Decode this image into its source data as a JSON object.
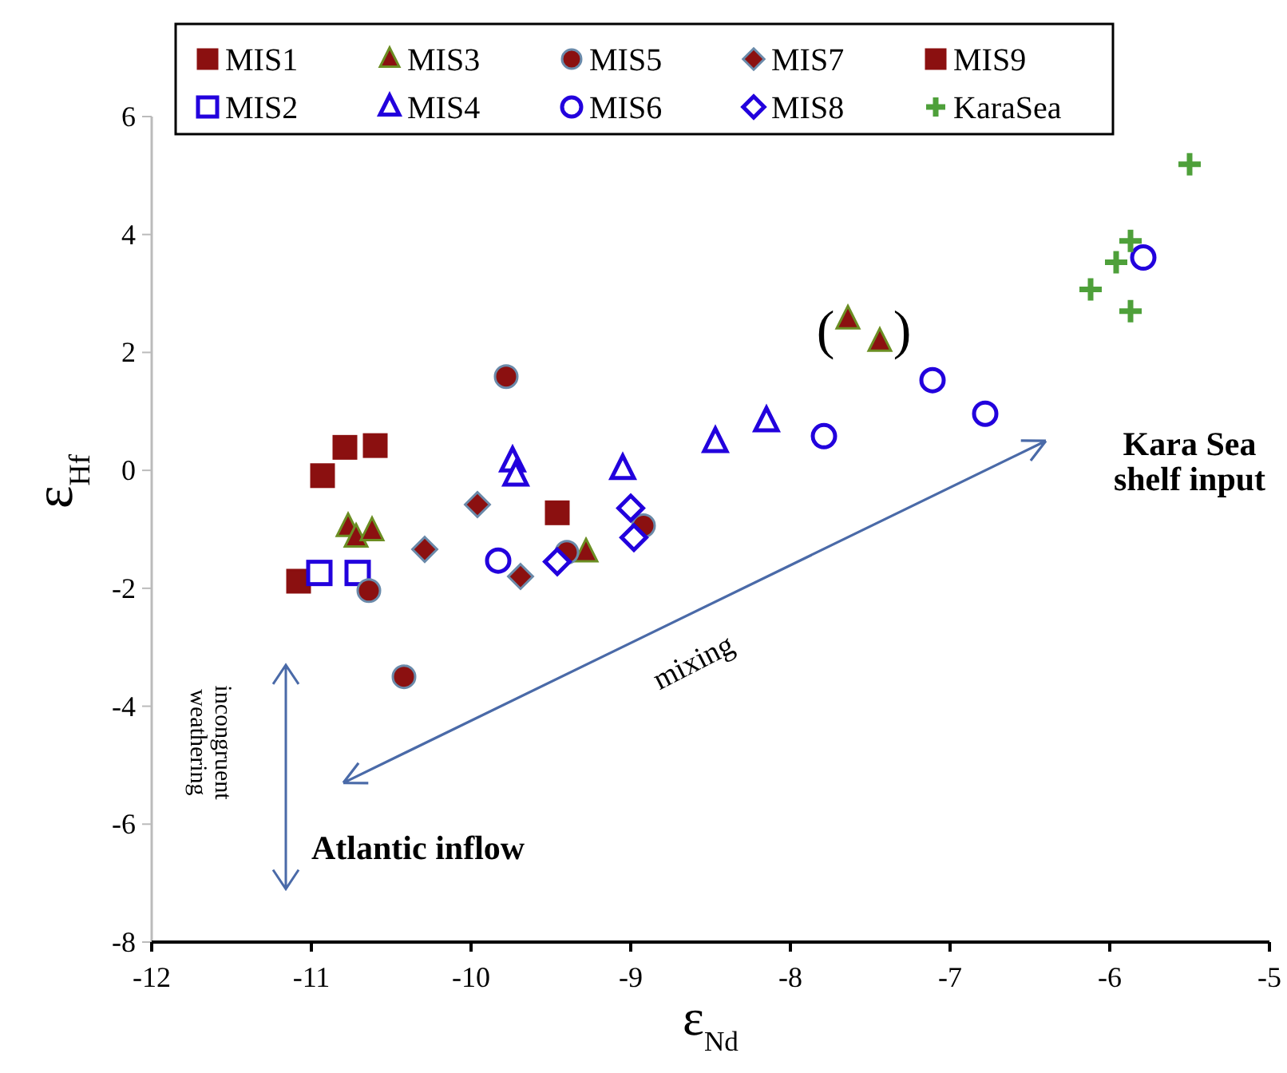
{
  "chart_data": {
    "type": "scatter",
    "xlabel": "ε$_{Nd}$",
    "ylabel": "ε$_{Hf}$",
    "xlim": [
      -12,
      -5
    ],
    "ylim": [
      -8,
      6
    ],
    "xticks": [
      -12,
      -11,
      -10,
      -9,
      -8,
      -7,
      -6,
      -5
    ],
    "yticks": [
      -8,
      -6,
      -4,
      -2,
      0,
      2,
      4,
      6
    ],
    "grid": false,
    "legend": "top",
    "series": [
      {
        "name": "MIS1",
        "color": "#8b1010",
        "marker": "square",
        "x": [
          -11.08,
          -10.93,
          -10.79,
          -10.6
        ],
        "values": [
          -1.88,
          -0.09,
          0.39,
          0.42
        ]
      },
      {
        "name": "MIS2",
        "color": "#2200dd",
        "marker": "square",
        "x": [
          -10.95,
          -10.71
        ],
        "values": [
          -1.74,
          -1.74
        ]
      },
      {
        "name": "MIS3",
        "color": "#8b1010",
        "marker": "triangle",
        "x": [
          -10.77,
          -10.72,
          -10.62,
          -9.28,
          -7.64,
          -7.44
        ],
        "values": [
          -0.96,
          -1.14,
          -1.03,
          -1.39,
          2.56,
          2.18
        ]
      },
      {
        "name": "MIS4",
        "color": "#2200dd",
        "marker": "triangle",
        "x": [
          -9.74,
          -9.72,
          -9.05,
          -8.47,
          -8.15
        ],
        "values": [
          0.15,
          -0.09,
          0.02,
          0.48,
          0.83
        ]
      },
      {
        "name": "MIS5",
        "color": "#8b1010",
        "marker": "circle",
        "x": [
          -9.78,
          -10.64,
          -10.42,
          -9.4,
          -8.92
        ],
        "values": [
          1.59,
          -2.04,
          -3.5,
          -1.39,
          -0.94
        ]
      },
      {
        "name": "MIS6",
        "color": "#2200dd",
        "marker": "circle",
        "x": [
          -9.83,
          -7.79,
          -7.11,
          -6.78,
          -5.79
        ],
        "values": [
          -1.53,
          0.58,
          1.53,
          0.96,
          3.61
        ]
      },
      {
        "name": "MIS7",
        "color": "#8b1010",
        "marker": "diamond",
        "x": [
          -9.96,
          -10.29,
          -9.69
        ],
        "values": [
          -0.58,
          -1.34,
          -1.8
        ]
      },
      {
        "name": "MIS8",
        "color": "#2200dd",
        "marker": "diamond",
        "x": [
          -9.46,
          -9.0,
          -8.98
        ],
        "values": [
          -1.55,
          -0.64,
          -1.14
        ]
      },
      {
        "name": "MIS9",
        "color": "#8b1010",
        "marker": "square",
        "x": [
          -9.46
        ],
        "values": [
          -0.72
        ]
      },
      {
        "name": "KaraSea",
        "color": "#4ea03a",
        "marker": "cross",
        "x": [
          -5.5,
          -5.87,
          -5.96,
          -6.12,
          -5.87
        ],
        "values": [
          5.19,
          3.89,
          3.53,
          3.07,
          2.7
        ]
      }
    ],
    "annotations": [
      "(",
      ")",
      "Kara Sea shelf input",
      "mixing",
      "incongruent weathering",
      "Atlantic inflow"
    ]
  }
}
